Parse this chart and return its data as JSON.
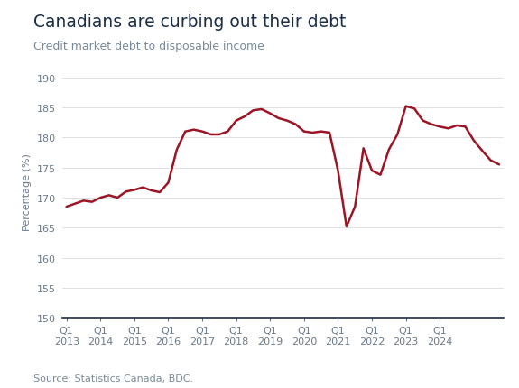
{
  "title": "Canadians are curbing out their debt",
  "subtitle": "Credit market debt to disposable income",
  "ylabel": "Percentage (%)",
  "source": "Source: Statistics Canada, BDC.",
  "title_color": "#1b2e45",
  "subtitle_color": "#7a8a99",
  "line_color": "#9b1525",
  "tick_label_color": "#6b7a8a",
  "background_color": "#ffffff",
  "ylim": [
    150,
    192
  ],
  "yticks": [
    150,
    155,
    160,
    165,
    170,
    175,
    180,
    185,
    190
  ],
  "x_labels": [
    "Q1\n2013",
    "Q1\n2014",
    "Q1\n2015",
    "Q1\n2016",
    "Q1\n2017",
    "Q1\n2018",
    "Q1\n2019",
    "Q1\n2020",
    "Q1\n2021",
    "Q1\n2022",
    "Q1\n2023",
    "Q1\n2024"
  ],
  "x_positions": [
    0,
    4,
    8,
    12,
    16,
    20,
    24,
    28,
    32,
    36,
    40,
    44
  ],
  "data": [
    [
      0,
      168.5
    ],
    [
      1,
      169.0
    ],
    [
      2,
      169.5
    ],
    [
      3,
      169.3
    ],
    [
      4,
      170.0
    ],
    [
      5,
      170.4
    ],
    [
      6,
      170.0
    ],
    [
      7,
      171.0
    ],
    [
      8,
      171.3
    ],
    [
      9,
      171.7
    ],
    [
      10,
      171.2
    ],
    [
      11,
      170.9
    ],
    [
      12,
      172.5
    ],
    [
      13,
      178.0
    ],
    [
      14,
      181.0
    ],
    [
      15,
      181.3
    ],
    [
      16,
      181.0
    ],
    [
      17,
      180.5
    ],
    [
      18,
      180.5
    ],
    [
      19,
      181.0
    ],
    [
      20,
      182.8
    ],
    [
      21,
      183.5
    ],
    [
      22,
      184.5
    ],
    [
      23,
      184.7
    ],
    [
      24,
      184.0
    ],
    [
      25,
      183.2
    ],
    [
      26,
      182.8
    ],
    [
      27,
      182.2
    ],
    [
      28,
      181.0
    ],
    [
      29,
      180.8
    ],
    [
      30,
      181.0
    ],
    [
      31,
      180.8
    ],
    [
      32,
      174.5
    ],
    [
      33,
      165.2
    ],
    [
      34,
      168.5
    ],
    [
      35,
      178.2
    ],
    [
      36,
      174.5
    ],
    [
      37,
      173.8
    ],
    [
      38,
      178.0
    ],
    [
      39,
      180.5
    ],
    [
      40,
      185.2
    ],
    [
      41,
      184.8
    ],
    [
      42,
      182.8
    ],
    [
      43,
      182.2
    ],
    [
      44,
      181.8
    ],
    [
      45,
      181.5
    ],
    [
      46,
      182.0
    ],
    [
      47,
      181.8
    ],
    [
      48,
      179.5
    ],
    [
      49,
      177.8
    ],
    [
      50,
      176.2
    ],
    [
      51,
      175.5
    ]
  ]
}
